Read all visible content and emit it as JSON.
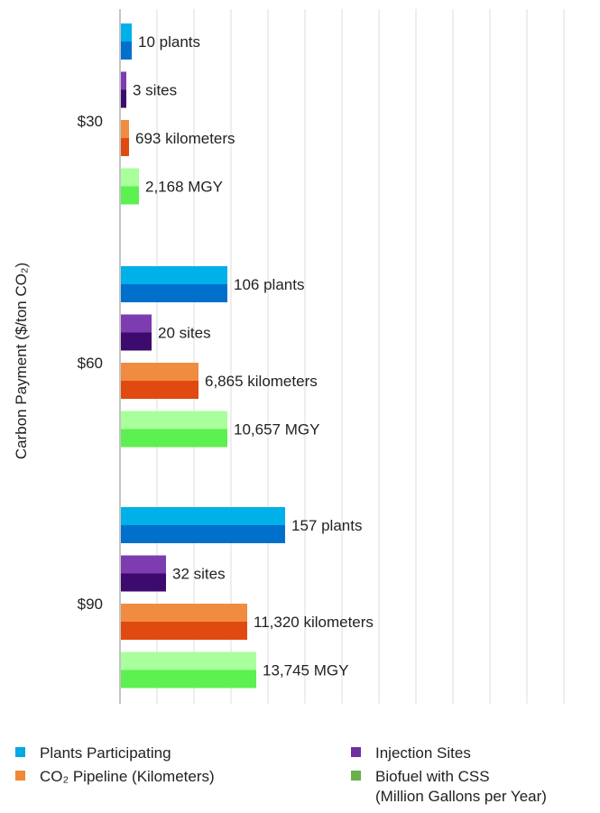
{
  "chart_data": {
    "type": "bar",
    "orientation": "horizontal",
    "ylabel": "Carbon Payment ($/ton CO₂)",
    "categories": [
      "$30",
      "$60",
      "$90"
    ],
    "xlim": [
      0,
      210
    ],
    "grid": true,
    "legend_position": "bottom",
    "series": [
      {
        "name": "Plants Participating",
        "color_light": "#00b0e8",
        "color_dark": "#0070cc",
        "legend_color": "#00a8e6",
        "values": [
          6,
          59,
          91
        ],
        "labels": [
          "10 plants",
          "106 plants",
          "157 plants"
        ]
      },
      {
        "name": "Injection Sites",
        "color_light": "#7d3cb0",
        "color_dark": "#3d0a6e",
        "legend_color": "#7030a0",
        "values": [
          3,
          17,
          25
        ],
        "labels": [
          "3 sites",
          "20 sites",
          "32 sites"
        ]
      },
      {
        "name": "CO₂ Pipeline (Kilometers)",
        "color_light": "#f08c40",
        "color_dark": "#e04a10",
        "legend_color": "#f08838",
        "values": [
          4.5,
          43,
          70
        ],
        "labels": [
          "693 kilometers",
          "6,865 kilometers",
          "11,320 kilometers"
        ]
      },
      {
        "name": "Biofuel with CSS",
        "name_line2": "(Million Gallons per Year)",
        "color_light": "#a8ff9c",
        "color_dark": "#5cf050",
        "legend_color": "#6ab04c",
        "values": [
          10,
          59,
          75
        ],
        "labels": [
          "2,168 MGY",
          "10,657 MGY",
          "13,745 MGY"
        ]
      }
    ]
  }
}
